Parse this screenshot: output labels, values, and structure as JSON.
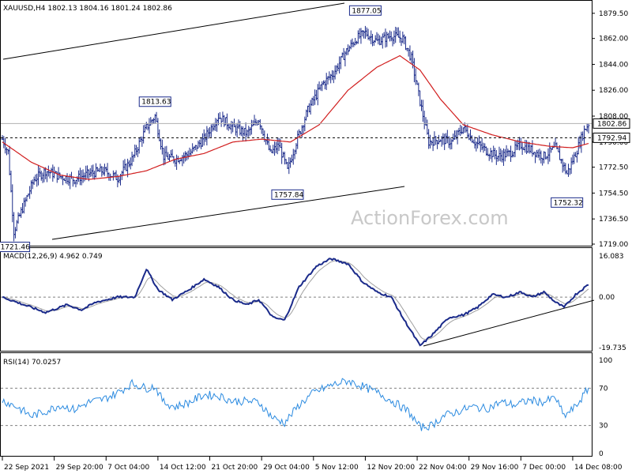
{
  "price_panel": {
    "symbol_header": "XAUUSD,H4 1802.13 1804.16 1801.24 1802.86",
    "price_range": [
      1719.0,
      1886.0
    ],
    "y_ticks": [
      {
        "value": 1879.5,
        "label": "1879.50"
      },
      {
        "value": 1862.0,
        "label": "1862.00"
      },
      {
        "value": 1844.0,
        "label": "1844.00"
      },
      {
        "value": 1826.0,
        "label": "1826.00"
      },
      {
        "value": 1808.0,
        "label": "1808.00"
      },
      {
        "value": 1790.0,
        "label": "1790.00"
      },
      {
        "value": 1772.5,
        "label": "1772.50"
      },
      {
        "value": 1754.5,
        "label": "1754.50"
      },
      {
        "value": 1736.5,
        "label": "1736.50"
      },
      {
        "value": 1719.0,
        "label": "1719.00"
      }
    ],
    "current_price": {
      "value": 1802.86,
      "label": "1802.86"
    },
    "support_line": {
      "value": 1792.94,
      "label": "1792.94"
    },
    "annotations": [
      {
        "label": "1721.46",
        "value": 1721.46,
        "bar": 8
      },
      {
        "label": "1813.63",
        "value": 1813.63,
        "bar": 106
      },
      {
        "label": "1757.84",
        "value": 1757.84,
        "bar": 198
      },
      {
        "label": "1877.05",
        "value": 1877.05,
        "bar": 252
      },
      {
        "label": "1752.32",
        "value": 1752.32,
        "bar": 392
      }
    ],
    "watermark": "ActionForex.com"
  },
  "macd_panel": {
    "header": "MACD(12,26,9) 4.962 0.749",
    "range": [
      -19.735,
      16.083
    ],
    "ticks": [
      {
        "value": 16.083,
        "label": "16.083"
      },
      {
        "value": 0.0,
        "label": "0.00"
      },
      {
        "value": -19.735,
        "label": "-19.735"
      }
    ]
  },
  "rsi_panel": {
    "header": "RSI(14) 70.0257",
    "range": [
      0,
      100
    ],
    "ticks": [
      {
        "value": 100,
        "label": "100"
      },
      {
        "value": 70,
        "label": "70"
      },
      {
        "value": 30,
        "label": "30"
      },
      {
        "value": 0,
        "label": "0"
      }
    ]
  },
  "time_axis": {
    "labels": [
      {
        "label": "22 Sep 2021",
        "bar": 0
      },
      {
        "label": "29 Sep 20:00",
        "bar": 36
      },
      {
        "label": "7 Oct 04:00",
        "bar": 72
      },
      {
        "label": "14 Oct 12:00",
        "bar": 108
      },
      {
        "label": "21 Oct 20:00",
        "bar": 144
      },
      {
        "label": "29 Oct 04:00",
        "bar": 180
      },
      {
        "label": "5 Nov 12:00",
        "bar": 216
      },
      {
        "label": "12 Nov 20:00",
        "bar": 252
      },
      {
        "label": "22 Nov 04:00",
        "bar": 288
      },
      {
        "label": "29 Nov 16:00",
        "bar": 324
      },
      {
        "label": "7 Dec 00:00",
        "bar": 360
      },
      {
        "label": "14 Dec 08:00",
        "bar": 396
      }
    ]
  },
  "chart_data": {
    "type": "line",
    "bars_total": 408,
    "price_close_keypoints": [
      [
        0,
        1792
      ],
      [
        4,
        1783
      ],
      [
        8,
        1728
      ],
      [
        14,
        1744
      ],
      [
        22,
        1764
      ],
      [
        30,
        1770
      ],
      [
        40,
        1766
      ],
      [
        50,
        1764
      ],
      [
        60,
        1768
      ],
      [
        70,
        1770
      ],
      [
        80,
        1765
      ],
      [
        90,
        1778
      ],
      [
        100,
        1800
      ],
      [
        106,
        1808
      ],
      [
        112,
        1780
      ],
      [
        120,
        1778
      ],
      [
        130,
        1782
      ],
      [
        140,
        1792
      ],
      [
        150,
        1808
      ],
      [
        160,
        1800
      ],
      [
        170,
        1796
      ],
      [
        178,
        1806
      ],
      [
        186,
        1782
      ],
      [
        192,
        1788
      ],
      [
        198,
        1770
      ],
      [
        204,
        1790
      ],
      [
        212,
        1812
      ],
      [
        222,
        1830
      ],
      [
        230,
        1838
      ],
      [
        238,
        1852
      ],
      [
        246,
        1862
      ],
      [
        252,
        1866
      ],
      [
        260,
        1860
      ],
      [
        270,
        1864
      ],
      [
        278,
        1862
      ],
      [
        284,
        1848
      ],
      [
        290,
        1818
      ],
      [
        296,
        1790
      ],
      [
        304,
        1792
      ],
      [
        312,
        1790
      ],
      [
        320,
        1800
      ],
      [
        328,
        1790
      ],
      [
        336,
        1784
      ],
      [
        344,
        1780
      ],
      [
        352,
        1782
      ],
      [
        360,
        1788
      ],
      [
        368,
        1784
      ],
      [
        376,
        1780
      ],
      [
        384,
        1786
      ],
      [
        392,
        1768
      ],
      [
        398,
        1782
      ],
      [
        404,
        1798
      ],
      [
        407,
        1802.86
      ]
    ],
    "macd_keypoints": [
      [
        0,
        0
      ],
      [
        10,
        -2
      ],
      [
        30,
        -6
      ],
      [
        45,
        -3
      ],
      [
        55,
        -5
      ],
      [
        65,
        -2
      ],
      [
        80,
        0
      ],
      [
        92,
        0
      ],
      [
        100,
        11
      ],
      [
        108,
        3
      ],
      [
        118,
        -1
      ],
      [
        130,
        3
      ],
      [
        140,
        7
      ],
      [
        150,
        4
      ],
      [
        160,
        -1
      ],
      [
        170,
        -3
      ],
      [
        178,
        -1
      ],
      [
        188,
        -8
      ],
      [
        196,
        -9
      ],
      [
        206,
        4
      ],
      [
        218,
        12
      ],
      [
        228,
        15
      ],
      [
        240,
        13
      ],
      [
        250,
        6
      ],
      [
        260,
        2
      ],
      [
        270,
        0
      ],
      [
        278,
        -8
      ],
      [
        290,
        -19
      ],
      [
        298,
        -15
      ],
      [
        310,
        -8
      ],
      [
        320,
        -7
      ],
      [
        330,
        -4
      ],
      [
        340,
        1
      ],
      [
        350,
        0
      ],
      [
        360,
        2
      ],
      [
        368,
        0
      ],
      [
        376,
        2
      ],
      [
        384,
        -2
      ],
      [
        390,
        -4
      ],
      [
        398,
        1
      ],
      [
        407,
        4.962
      ]
    ],
    "rsi_keypoints": [
      [
        0,
        57
      ],
      [
        10,
        50
      ],
      [
        20,
        40
      ],
      [
        30,
        45
      ],
      [
        40,
        52
      ],
      [
        50,
        47
      ],
      [
        60,
        55
      ],
      [
        70,
        58
      ],
      [
        80,
        65
      ],
      [
        90,
        75
      ],
      [
        100,
        70
      ],
      [
        106,
        72
      ],
      [
        112,
        55
      ],
      [
        120,
        50
      ],
      [
        130,
        55
      ],
      [
        140,
        63
      ],
      [
        150,
        62
      ],
      [
        160,
        56
      ],
      [
        170,
        56
      ],
      [
        178,
        55
      ],
      [
        188,
        38
      ],
      [
        196,
        33
      ],
      [
        206,
        52
      ],
      [
        216,
        65
      ],
      [
        228,
        73
      ],
      [
        240,
        78
      ],
      [
        250,
        72
      ],
      [
        262,
        64
      ],
      [
        272,
        55
      ],
      [
        282,
        45
      ],
      [
        290,
        28
      ],
      [
        298,
        30
      ],
      [
        306,
        40
      ],
      [
        316,
        45
      ],
      [
        326,
        50
      ],
      [
        336,
        48
      ],
      [
        346,
        55
      ],
      [
        356,
        52
      ],
      [
        366,
        57
      ],
      [
        376,
        55
      ],
      [
        384,
        60
      ],
      [
        390,
        40
      ],
      [
        398,
        50
      ],
      [
        407,
        70.0257
      ]
    ],
    "ma_keypoints": [
      [
        0,
        1790
      ],
      [
        20,
        1776
      ],
      [
        40,
        1767
      ],
      [
        60,
        1764
      ],
      [
        80,
        1766
      ],
      [
        100,
        1770
      ],
      [
        120,
        1778
      ],
      [
        140,
        1782
      ],
      [
        160,
        1790
      ],
      [
        180,
        1792
      ],
      [
        200,
        1790
      ],
      [
        220,
        1802
      ],
      [
        240,
        1826
      ],
      [
        260,
        1842
      ],
      [
        276,
        1850
      ],
      [
        290,
        1840
      ],
      [
        304,
        1820
      ],
      [
        320,
        1802
      ],
      [
        340,
        1795
      ],
      [
        360,
        1790
      ],
      [
        380,
        1787
      ],
      [
        396,
        1786
      ],
      [
        407,
        1789
      ]
    ]
  }
}
